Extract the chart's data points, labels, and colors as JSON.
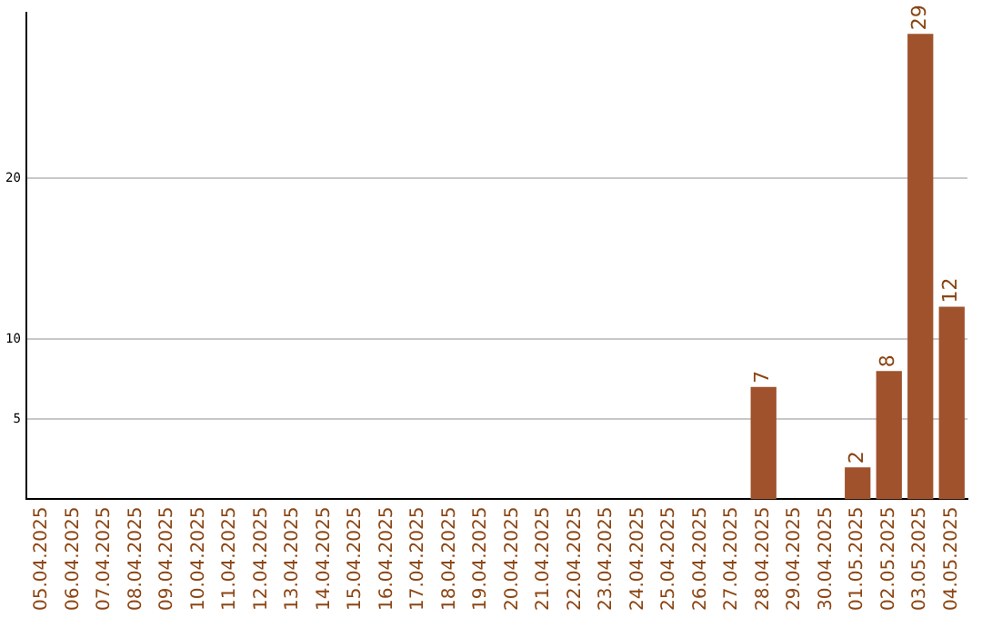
{
  "chart_data": {
    "type": "bar",
    "categories": [
      "05.04.2025",
      "06.04.2025",
      "07.04.2025",
      "08.04.2025",
      "09.04.2025",
      "10.04.2025",
      "11.04.2025",
      "12.04.2025",
      "13.04.2025",
      "14.04.2025",
      "15.04.2025",
      "16.04.2025",
      "17.04.2025",
      "18.04.2025",
      "19.04.2025",
      "20.04.2025",
      "21.04.2025",
      "22.04.2025",
      "23.04.2025",
      "24.04.2025",
      "25.04.2025",
      "26.04.2025",
      "27.04.2025",
      "28.04.2025",
      "29.04.2025",
      "30.04.2025",
      "01.05.2025",
      "02.05.2025",
      "03.05.2025",
      "04.05.2025"
    ],
    "values": [
      0,
      0,
      0,
      0,
      0,
      0,
      0,
      0,
      0,
      0,
      0,
      0,
      0,
      0,
      0,
      0,
      0,
      0,
      0,
      0,
      0,
      0,
      0,
      7,
      0,
      0,
      2,
      8,
      29,
      12
    ],
    "value_labels": [
      null,
      null,
      null,
      null,
      null,
      null,
      null,
      null,
      null,
      null,
      null,
      null,
      null,
      null,
      null,
      null,
      null,
      null,
      null,
      null,
      null,
      null,
      null,
      "7",
      null,
      null,
      "2",
      "8",
      "29",
      "12"
    ],
    "color": "#a0522d",
    "ylim": [
      0,
      30.3
    ],
    "yticks": [
      5,
      10,
      20
    ],
    "grid": "y",
    "legend": false
  }
}
